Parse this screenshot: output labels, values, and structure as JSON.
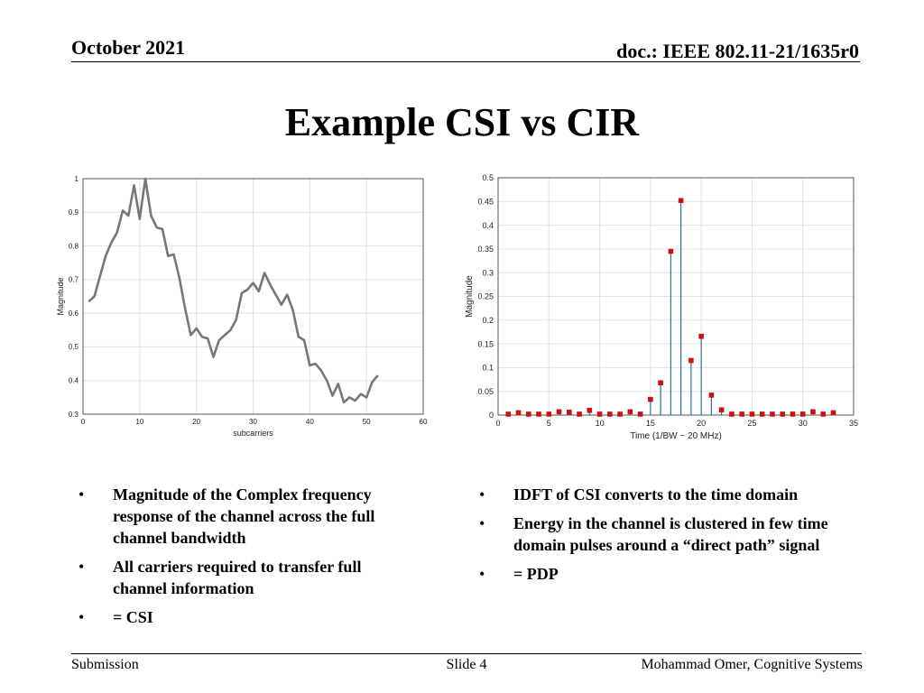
{
  "header": {
    "date": "October 2021",
    "doc_id": "doc.: IEEE 802.11-21/1635r0"
  },
  "title": "Example CSI vs CIR",
  "bullets_left": [
    "Magnitude of the Complex frequency response of the channel across the full channel bandwidth",
    "All carriers required to transfer full channel information",
    "= CSI"
  ],
  "bullets_right": [
    "IDFT of CSI converts to the time domain",
    "Energy in the channel is clustered in few time domain pulses around a “direct path” signal",
    "= PDP"
  ],
  "bullet_glyph": "•",
  "footer": {
    "left": "Submission",
    "center": "Slide 4",
    "right": "Mohammad Omer, Cognitive Systems"
  },
  "chart_data": [
    {
      "type": "line",
      "title": "",
      "xlabel": "subcarriers",
      "ylabel": "Magnitude",
      "xlim": [
        0,
        60
      ],
      "ylim": [
        0.3,
        1
      ],
      "xticks": [
        0,
        10,
        20,
        30,
        40,
        50,
        60
      ],
      "yticks": [
        0.3,
        0.4,
        0.5,
        0.6,
        0.7,
        0.8,
        0.9,
        1
      ],
      "grid": true,
      "color": "#777777",
      "x": [
        1,
        2,
        3,
        4,
        5,
        6,
        7,
        8,
        9,
        10,
        11,
        12,
        13,
        14,
        15,
        16,
        17,
        18,
        19,
        20,
        21,
        22,
        23,
        24,
        25,
        26,
        27,
        28,
        29,
        30,
        31,
        32,
        33,
        34,
        35,
        36,
        37,
        38,
        39,
        40,
        41,
        42,
        43,
        44,
        45,
        46,
        47,
        48,
        49,
        50,
        51,
        52
      ],
      "y": [
        0.635,
        0.65,
        0.71,
        0.77,
        0.81,
        0.84,
        0.905,
        0.89,
        0.98,
        0.88,
        1.0,
        0.89,
        0.855,
        0.85,
        0.77,
        0.775,
        0.705,
        0.615,
        0.535,
        0.555,
        0.53,
        0.525,
        0.47,
        0.52,
        0.535,
        0.55,
        0.58,
        0.66,
        0.67,
        0.69,
        0.665,
        0.72,
        0.685,
        0.655,
        0.625,
        0.655,
        0.61,
        0.53,
        0.52,
        0.445,
        0.45,
        0.43,
        0.4,
        0.355,
        0.39,
        0.335,
        0.35,
        0.34,
        0.36,
        0.35,
        0.395,
        0.415
      ]
    },
    {
      "type": "stem",
      "title": "",
      "xlabel": "Time (1/BW ~ 20 MHz)",
      "ylabel": "Magnitude",
      "xlim": [
        0,
        35
      ],
      "ylim": [
        0,
        0.5
      ],
      "xticks": [
        0,
        5,
        10,
        15,
        20,
        25,
        30,
        35
      ],
      "yticks": [
        0,
        0.05,
        0.1,
        0.15,
        0.2,
        0.25,
        0.3,
        0.35,
        0.4,
        0.45,
        0.5
      ],
      "grid": true,
      "stem_color": "#1f77b4",
      "marker_color": "#cc1111",
      "x": [
        1,
        2,
        3,
        4,
        5,
        6,
        7,
        8,
        9,
        10,
        11,
        12,
        13,
        14,
        15,
        16,
        17,
        18,
        19,
        20,
        21,
        22,
        23,
        24,
        25,
        26,
        27,
        28,
        29,
        30,
        31,
        32,
        33
      ],
      "y": [
        0.002,
        0.005,
        0.002,
        0.002,
        0.002,
        0.007,
        0.006,
        0.002,
        0.01,
        0.002,
        0.002,
        0.002,
        0.007,
        0.002,
        0.033,
        0.068,
        0.345,
        0.452,
        0.115,
        0.166,
        0.042,
        0.011,
        0.002,
        0.002,
        0.002,
        0.002,
        0.002,
        0.002,
        0.002,
        0.002,
        0.007,
        0.002,
        0.005
      ]
    }
  ]
}
